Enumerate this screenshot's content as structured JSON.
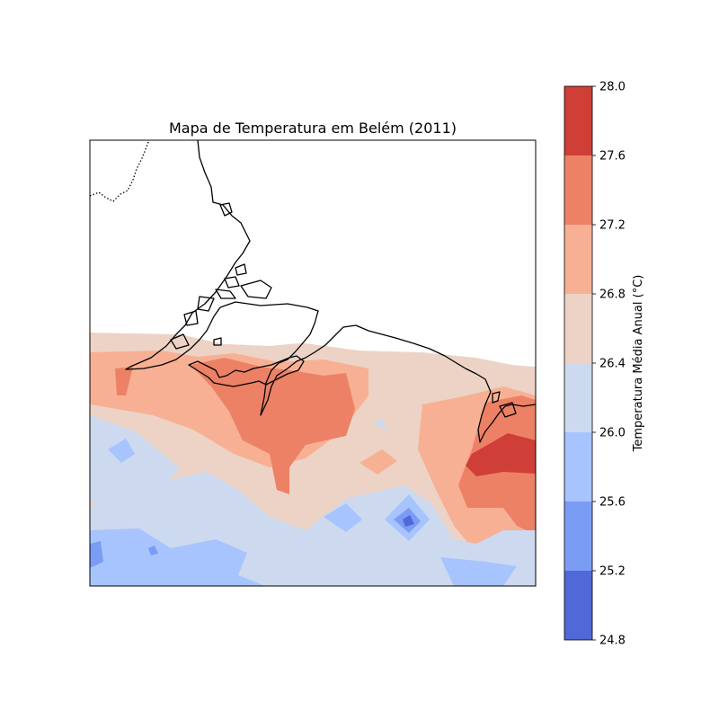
{
  "chart_data": {
    "type": "heatmap",
    "title": "Mapa de Temperatura em Belém (2011)",
    "colorbar": {
      "label": "Temperatura Média Anual (°C)",
      "ticks": [
        "24.8",
        "25.2",
        "25.6",
        "26.0",
        "26.4",
        "26.8",
        "27.2",
        "27.6",
        "28.0"
      ],
      "levels": [
        {
          "min": 24.8,
          "max": 25.2,
          "color": "#5068d8"
        },
        {
          "min": 25.2,
          "max": 25.6,
          "color": "#7b9cf4"
        },
        {
          "min": 25.6,
          "max": 26.0,
          "color": "#a7c4fe"
        },
        {
          "min": 26.0,
          "max": 26.4,
          "color": "#ccd9ee"
        },
        {
          "min": 26.4,
          "max": 26.8,
          "color": "#ecd3c5"
        },
        {
          "min": 26.8,
          "max": 27.2,
          "color": "#f7b093"
        },
        {
          "min": 27.2,
          "max": 27.6,
          "color": "#ec8166"
        },
        {
          "min": 27.6,
          "max": 28.0,
          "color": "#cf3f37"
        }
      ]
    },
    "features": [
      "coastline",
      "country-border-dotted"
    ],
    "missing_data_region": "north (white)",
    "legend_placement": "right colorbar"
  }
}
